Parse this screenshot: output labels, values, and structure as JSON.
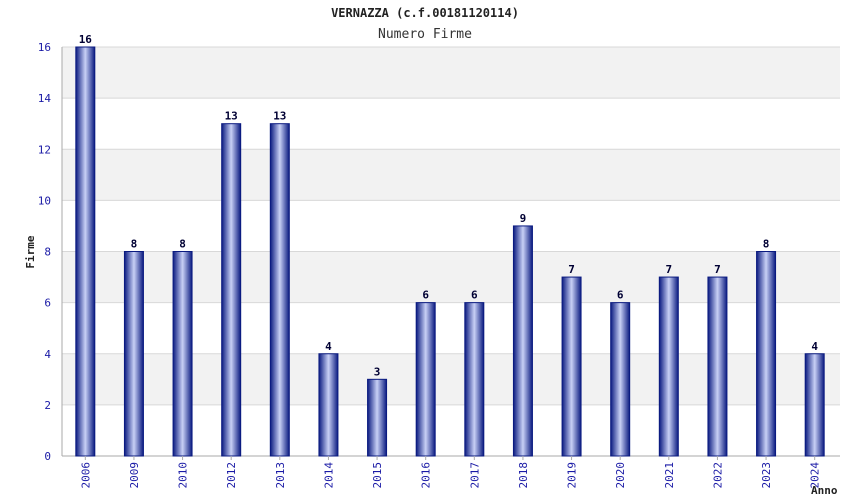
{
  "chart_data": {
    "type": "bar",
    "title": "VERNAZZA (c.f.00181120114)",
    "subtitle": "Numero Firme",
    "xlabel": "Anno",
    "ylabel": "Firme",
    "categories": [
      "2006",
      "2009",
      "2010",
      "2012",
      "2013",
      "2014",
      "2015",
      "2016",
      "2017",
      "2018",
      "2019",
      "2020",
      "2021",
      "2022",
      "2023",
      "2024"
    ],
    "values": [
      16,
      8,
      8,
      13,
      13,
      4,
      3,
      6,
      6,
      9,
      7,
      6,
      7,
      7,
      8,
      4
    ],
    "ylim": [
      0,
      16
    ],
    "yticks": [
      0,
      2,
      4,
      6,
      8,
      10,
      12,
      14,
      16
    ],
    "grid": true,
    "colors": {
      "bar_dark": "#0a1a80",
      "bar_light": "#c8d0f5",
      "band_shade": "#f2f2f2",
      "band_plain": "#ffffff",
      "gridline": "#d8d8d8",
      "tick_text": "#1a1aa6"
    }
  }
}
